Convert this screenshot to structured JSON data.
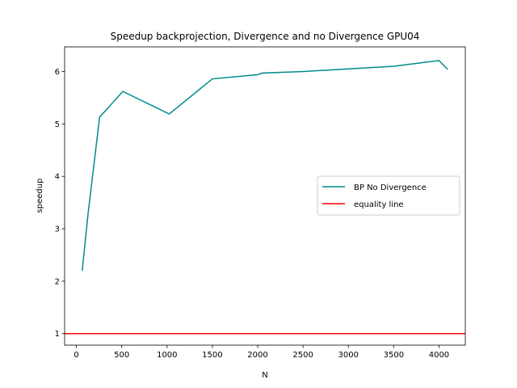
{
  "chart_data": {
    "type": "line",
    "title": "Speedup backprojection, Divergence and no Divergence GPU04",
    "xlabel": "N",
    "ylabel": "speedup",
    "xlim": [
      -130,
      4290
    ],
    "ylim": [
      0.78,
      6.47
    ],
    "xticks": [
      0,
      500,
      1000,
      1500,
      2000,
      2500,
      3000,
      3500,
      4000
    ],
    "yticks": [
      1,
      2,
      3,
      4,
      5,
      6
    ],
    "legend_position": "center-right",
    "series": [
      {
        "name": "BP No Divergence",
        "color": "#008b8b",
        "x": [
          64,
          128,
          256,
          512,
          1024,
          1500,
          2000,
          2048,
          2500,
          3000,
          3500,
          4000,
          4096
        ],
        "y": [
          2.2,
          3.28,
          5.13,
          5.62,
          5.19,
          5.86,
          5.94,
          5.97,
          6.0,
          6.05,
          6.1,
          6.21,
          6.04
        ]
      },
      {
        "name": "equality line",
        "color": "#ff0000",
        "x": [
          -130,
          4290
        ],
        "y": [
          1,
          1
        ]
      }
    ]
  }
}
